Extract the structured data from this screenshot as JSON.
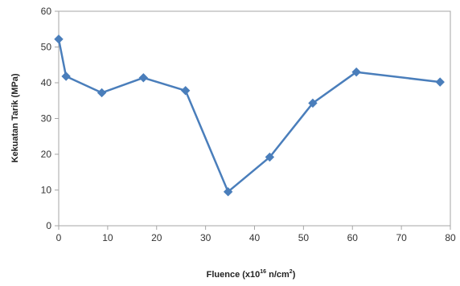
{
  "chart_data": {
    "type": "line",
    "title": "",
    "xlabel_parts": {
      "pre": "Fluence (x10",
      "sup_exp": "16",
      "mid": " n/cm",
      "sup_unit": "2",
      "post": ")"
    },
    "ylabel": "Kekuatan Tarik (MPa)",
    "xlim": [
      0,
      80
    ],
    "ylim": [
      0,
      60
    ],
    "x_ticks": [
      "0",
      "10",
      "20",
      "30",
      "40",
      "50",
      "60",
      "70",
      "80"
    ],
    "y_ticks": [
      "0",
      "10",
      "20",
      "30",
      "40",
      "50",
      "60"
    ],
    "grid": false,
    "legend": "none",
    "series": [
      {
        "color": "#4a7ebb",
        "marker": "diamond",
        "x": [
          0,
          1.5,
          8.8,
          17.3,
          25.9,
          34.6,
          43.1,
          51.9,
          60.8,
          77.9
        ],
        "y": [
          52.2,
          41.8,
          37.2,
          41.4,
          37.8,
          9.5,
          19.2,
          34.3,
          43.0,
          40.2
        ]
      }
    ]
  }
}
